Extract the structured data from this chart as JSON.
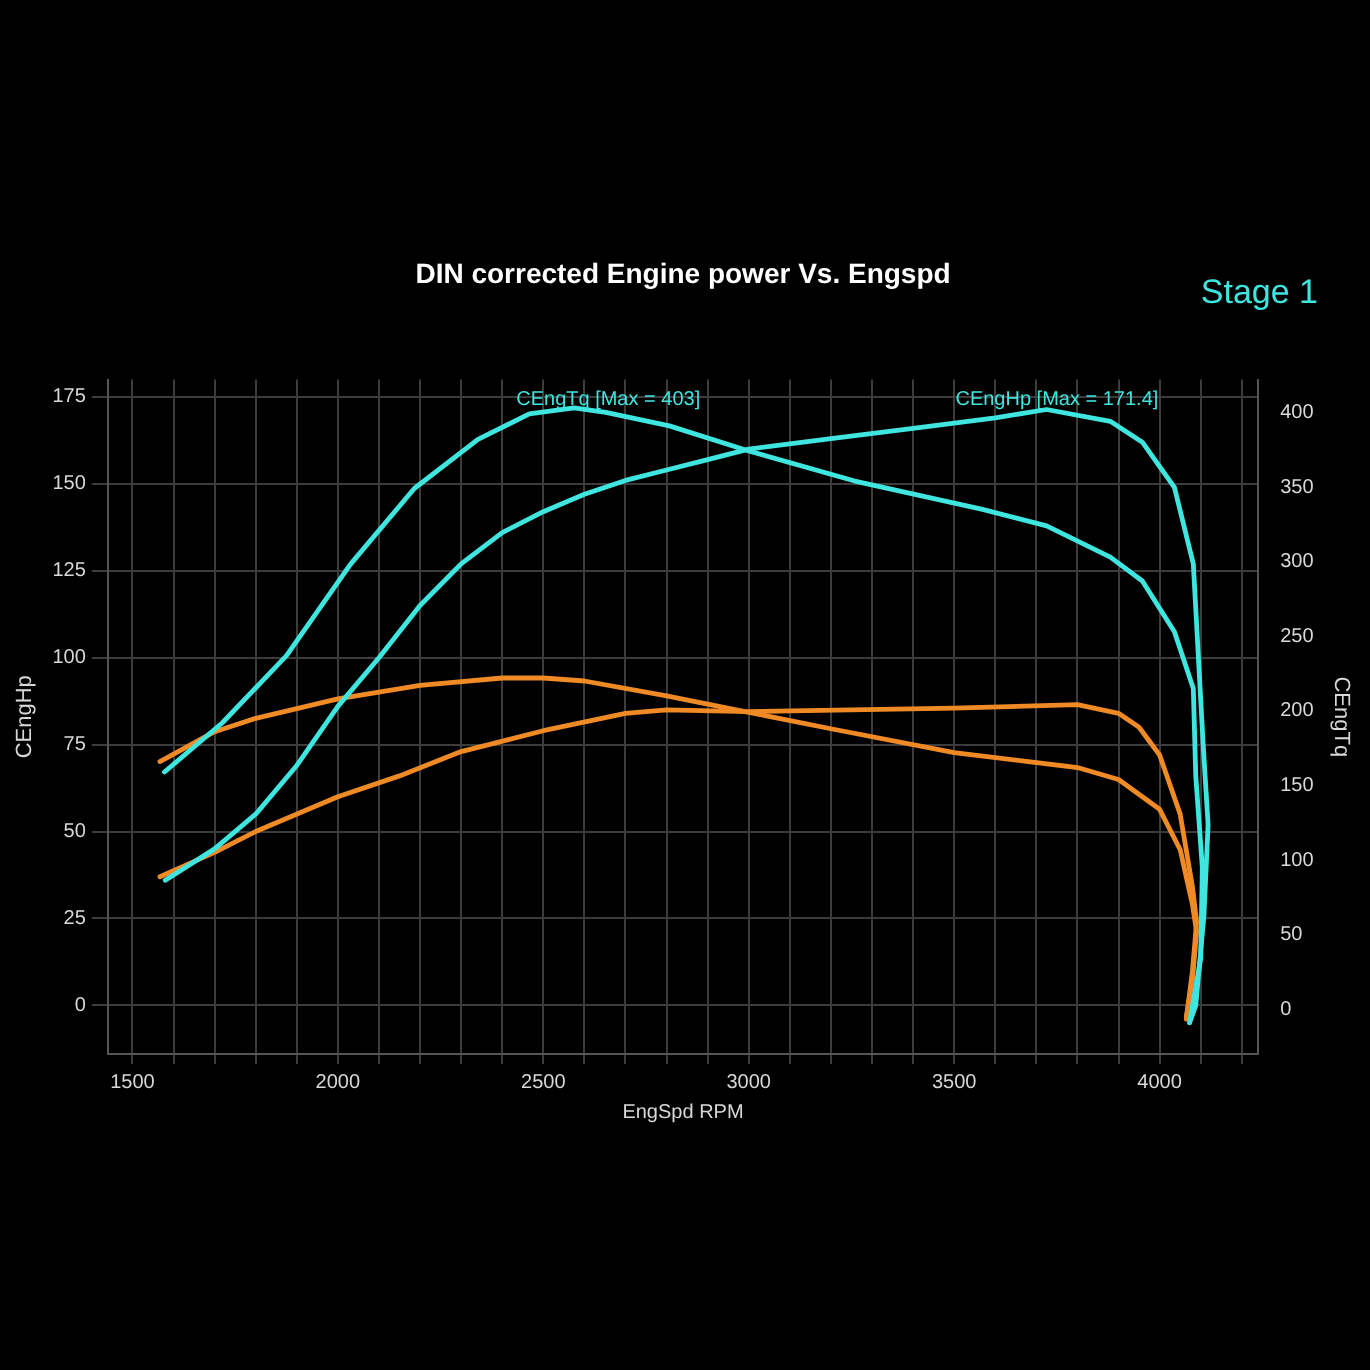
{
  "chart_data": {
    "type": "line",
    "title": "DIN corrected Engine power Vs. Engspd",
    "subtitle": "Stage 1",
    "xlabel": "EngSpd RPM",
    "ylabel": "CEngHp",
    "y2label": "CEngTq",
    "xlim": [
      1440,
      4240
    ],
    "xticks": [
      1500,
      {
        "value": 1600,
        "label": null
      },
      {
        "value": 1700,
        "label": null
      },
      {
        "value": 1800,
        "label": null
      },
      {
        "value": 1900,
        "label": null
      },
      2000,
      {
        "value": 2100,
        "label": null
      },
      {
        "value": 2200,
        "label": null
      },
      {
        "value": 2300,
        "label": null
      },
      {
        "value": 2400,
        "label": null
      },
      2500,
      {
        "value": 2600,
        "label": null
      },
      {
        "value": 2700,
        "label": null
      },
      {
        "value": 2800,
        "label": null
      },
      {
        "value": 2900,
        "label": null
      },
      3000,
      {
        "value": 3100,
        "label": null
      },
      {
        "value": 3200,
        "label": null
      },
      {
        "value": 3300,
        "label": null
      },
      {
        "value": 3400,
        "label": null
      },
      3500,
      {
        "value": 3600,
        "label": null
      },
      {
        "value": 3700,
        "label": null
      },
      {
        "value": 3800,
        "label": null
      },
      {
        "value": 3900,
        "label": null
      },
      4000,
      {
        "value": 4100,
        "label": null
      },
      {
        "value": 4200,
        "label": null
      }
    ],
    "ylim": [
      -14,
      180
    ],
    "yticks": [
      0,
      25,
      50,
      75,
      100,
      125,
      150,
      175
    ],
    "y2lim": [
      -30,
      422
    ],
    "y2ticks": [
      0,
      50,
      100,
      150,
      200,
      250,
      300,
      350,
      400
    ],
    "grid": true,
    "legend": false,
    "marker": "none",
    "line_style": "solid",
    "series": [
      {
        "color": "#3ee6df",
        "x": [
          1580,
          1700,
          1800,
          1900,
          2000,
          2100,
          2200,
          2300,
          2400,
          2500,
          2600,
          2700,
          2800,
          2900,
          3000,
          3200,
          3400,
          3600,
          3725,
          3880,
          3958,
          4036,
          4082,
          4106,
          4118,
          4108,
          4088,
          4073
        ],
        "values": [
          36,
          45,
          55,
          69,
          86,
          100,
          115,
          127,
          136,
          142,
          147,
          151,
          154,
          157,
          160,
          163,
          166,
          169,
          171.4,
          168,
          162,
          149,
          127,
          75,
          52,
          26,
          0,
          -5
        ]
      },
      {
        "color": "#3ee6df",
        "axis": "y2",
        "x": [
          1578,
          1719,
          1875,
          2030,
          2186,
          2341,
          2466,
          2575,
          2652,
          2807,
          3002,
          3258,
          3569,
          3725,
          3880,
          3958,
          4036,
          4082,
          4088,
          4104,
          4100,
          4073
        ],
        "values": [
          159,
          192,
          237,
          298,
          349,
          382,
          399,
          403,
          400,
          391,
          374,
          354,
          335,
          324,
          303,
          287,
          253,
          215,
          156,
          95,
          34,
          -9
        ]
      },
      {
        "color": "#f08a24",
        "x": [
          1567,
          1700,
          1800,
          2000,
          2150,
          2300,
          2500,
          2700,
          2800,
          3000,
          3500,
          3800,
          3900,
          3950,
          4000,
          4050,
          4080,
          4090,
          4080,
          4065
        ],
        "values": [
          37,
          44,
          50,
          60,
          66,
          73,
          79,
          84,
          85,
          84.5,
          85.5,
          86.5,
          84,
          80,
          72,
          55,
          34,
          24,
          10,
          -4
        ]
      },
      {
        "color": "#f08a24",
        "axis": "y2",
        "x": [
          1567,
          1700,
          1800,
          2000,
          2200,
          2400,
          2500,
          2600,
          2800,
          3000,
          3200,
          3500,
          3800,
          3900,
          4000,
          4050,
          4080,
          4090,
          4080,
          4065
        ],
        "values": [
          166,
          186,
          195,
          208,
          217,
          222,
          222,
          220,
          210,
          199,
          188,
          172,
          162,
          154,
          134,
          107,
          70,
          52,
          20,
          -5
        ]
      }
    ],
    "annotations": [
      "CEngTq [Max = 403]",
      "CEngHp [Max = 171.4]"
    ]
  }
}
